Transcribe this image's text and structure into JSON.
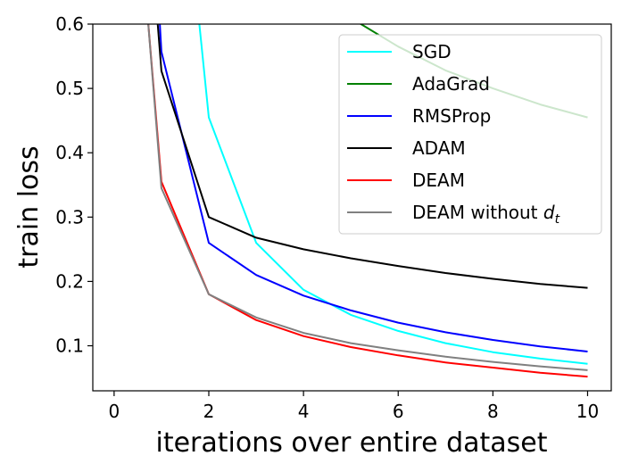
{
  "chart_data": {
    "type": "line",
    "title": "",
    "xlabel": "iterations over entire dataset",
    "ylabel": "train loss",
    "xlim": [
      -0.45,
      10.5
    ],
    "ylim": [
      0.03,
      0.6
    ],
    "xticks": [
      0,
      2,
      4,
      6,
      8,
      10
    ],
    "yticks": [
      0.1,
      0.2,
      0.3,
      0.4,
      0.5,
      0.6
    ],
    "ytick_labels": [
      "0.1",
      "0.2",
      "0.3",
      "0.4",
      "0.5",
      "0.6"
    ],
    "legend_position": "top-right",
    "series": [
      {
        "name": "SGD",
        "color": "#00ffff",
        "x": [
          1.7,
          1.8,
          2,
          3,
          4,
          5,
          6,
          7,
          8,
          9,
          10
        ],
        "y": [
          0.62,
          0.6,
          0.455,
          0.26,
          0.187,
          0.148,
          0.123,
          0.104,
          0.09,
          0.08,
          0.072
        ]
      },
      {
        "name": "AdaGrad",
        "color": "#008000",
        "x": [
          5.1,
          6,
          7,
          8,
          9,
          10
        ],
        "y": [
          0.605,
          0.565,
          0.528,
          0.5,
          0.475,
          0.455
        ]
      },
      {
        "name": "RMSProp",
        "color": "#0000ff",
        "x": [
          0.95,
          1,
          2,
          3,
          4,
          5,
          6,
          7,
          8,
          9,
          10
        ],
        "y": [
          0.62,
          0.557,
          0.26,
          0.21,
          0.178,
          0.155,
          0.136,
          0.121,
          0.109,
          0.099,
          0.091
        ]
      },
      {
        "name": "ADAM",
        "color": "#000000",
        "x": [
          0.9,
          1,
          2,
          3,
          4,
          5,
          6,
          7,
          8,
          9,
          10
        ],
        "y": [
          0.62,
          0.527,
          0.3,
          0.268,
          0.25,
          0.236,
          0.224,
          0.213,
          0.204,
          0.196,
          0.19
        ]
      },
      {
        "name": "DEAM",
        "color": "#ff0000",
        "x": [
          0.7,
          1,
          2,
          3,
          4,
          5,
          6,
          7,
          8,
          9,
          10
        ],
        "y": [
          0.62,
          0.355,
          0.18,
          0.14,
          0.115,
          0.098,
          0.085,
          0.074,
          0.066,
          0.058,
          0.052
        ]
      },
      {
        "name": "DEAM without d_t",
        "color": "#808080",
        "x": [
          0.7,
          1,
          2,
          3,
          4,
          5,
          6,
          7,
          8,
          9,
          10
        ],
        "y": [
          0.62,
          0.345,
          0.18,
          0.144,
          0.12,
          0.104,
          0.093,
          0.083,
          0.075,
          0.068,
          0.062
        ]
      }
    ]
  },
  "legend": {
    "items": [
      {
        "label": "SGD"
      },
      {
        "label": "AdaGrad"
      },
      {
        "label": "RMSProp"
      },
      {
        "label": "ADAM"
      },
      {
        "label": "DEAM"
      },
      {
        "label": "DEAM without ",
        "math_var": "d",
        "math_sub": "t"
      }
    ]
  }
}
